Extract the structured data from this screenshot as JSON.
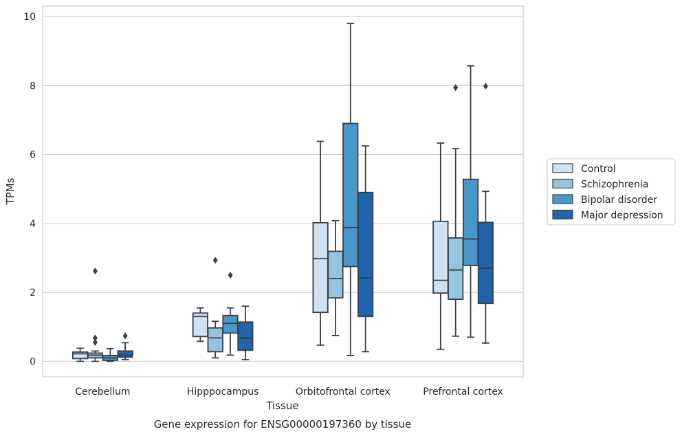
{
  "chart_data": {
    "type": "box",
    "xlabel": "Tissue",
    "ylabel": "TPMs",
    "caption": "Gene expression for ENSG00000197360 by tissue",
    "ylim": [
      -0.45,
      10.3
    ],
    "yticks": [
      0,
      2,
      4,
      6,
      8,
      10
    ],
    "grid": true,
    "legend_position": "right",
    "categories": [
      "Cerebellum",
      "Hipppocampus",
      "Orbitofrontal cortex",
      "Prefrontal cortex"
    ],
    "series": [
      {
        "name": "Control",
        "color": "#d0e1f2",
        "boxes": [
          {
            "whislo": 0.0,
            "q1": 0.08,
            "med": 0.22,
            "q3": 0.27,
            "whishi": 0.38,
            "fliers": []
          },
          {
            "whislo": 0.58,
            "q1": 0.72,
            "med": 1.3,
            "q3": 1.4,
            "whishi": 1.55,
            "fliers": []
          },
          {
            "whislo": 0.47,
            "q1": 1.42,
            "med": 2.98,
            "q3": 4.02,
            "whishi": 6.38,
            "fliers": []
          },
          {
            "whislo": 0.35,
            "q1": 1.98,
            "med": 2.35,
            "q3": 4.06,
            "whishi": 6.33,
            "fliers": []
          }
        ]
      },
      {
        "name": "Schizophrenia",
        "color": "#94c4df",
        "boxes": [
          {
            "whislo": 0.0,
            "q1": 0.1,
            "med": 0.18,
            "q3": 0.24,
            "whishi": 0.3,
            "fliers": [
              2.62,
              0.68,
              0.55
            ]
          },
          {
            "whislo": 0.1,
            "q1": 0.28,
            "med": 0.68,
            "q3": 0.97,
            "whishi": 1.16,
            "fliers": [
              2.93
            ]
          },
          {
            "whislo": 0.75,
            "q1": 1.84,
            "med": 2.4,
            "q3": 3.19,
            "whishi": 4.08,
            "fliers": []
          },
          {
            "whislo": 0.73,
            "q1": 1.8,
            "med": 2.65,
            "q3": 3.58,
            "whishi": 6.17,
            "fliers": [
              7.94
            ]
          }
        ]
      },
      {
        "name": "Bipolar disorder",
        "color": "#4a98c9",
        "boxes": [
          {
            "whislo": 0.0,
            "q1": 0.03,
            "med": 0.1,
            "q3": 0.17,
            "whishi": 0.37,
            "fliers": []
          },
          {
            "whislo": 0.18,
            "q1": 0.82,
            "med": 1.1,
            "q3": 1.33,
            "whishi": 1.55,
            "fliers": [
              2.5
            ]
          },
          {
            "whislo": 0.17,
            "q1": 2.75,
            "med": 3.88,
            "q3": 6.9,
            "whishi": 9.8,
            "fliers": []
          },
          {
            "whislo": 0.7,
            "q1": 2.78,
            "med": 3.55,
            "q3": 5.28,
            "whishi": 8.57,
            "fliers": []
          }
        ]
      },
      {
        "name": "Major depression",
        "color": "#2164ab",
        "boxes": [
          {
            "whislo": 0.05,
            "q1": 0.12,
            "med": 0.18,
            "q3": 0.3,
            "whishi": 0.54,
            "fliers": [
              0.74
            ]
          },
          {
            "whislo": 0.05,
            "q1": 0.32,
            "med": 0.68,
            "q3": 1.14,
            "whishi": 1.6,
            "fliers": []
          },
          {
            "whislo": 0.28,
            "q1": 1.3,
            "med": 2.42,
            "q3": 4.9,
            "whishi": 6.25,
            "fliers": []
          },
          {
            "whislo": 0.53,
            "q1": 1.68,
            "med": 2.7,
            "q3": 4.03,
            "whishi": 4.93,
            "fliers": [
              7.98
            ]
          }
        ]
      }
    ]
  }
}
